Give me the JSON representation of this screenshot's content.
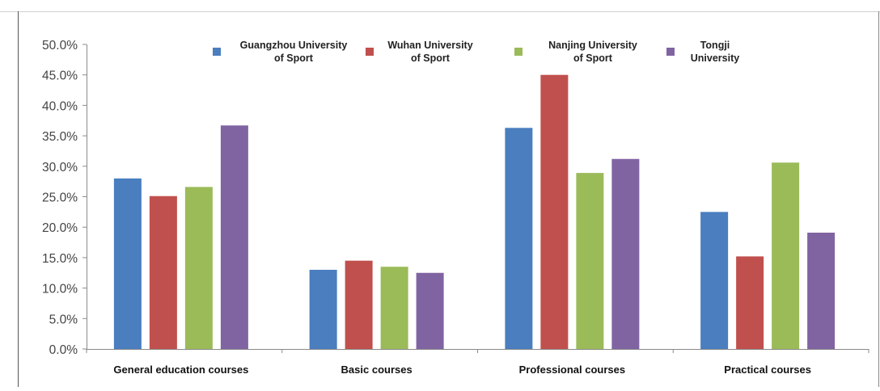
{
  "chart_data": {
    "type": "bar",
    "title": "",
    "xlabel": "",
    "ylabel": "",
    "categories": [
      "General education courses",
      "Basic courses",
      "Professional courses",
      "Practical courses"
    ],
    "series": [
      {
        "name_lines": [
          "Guangzhou University",
          "of Sport"
        ],
        "color": "#4a7ebf",
        "values": [
          28.0,
          13.0,
          36.3,
          22.5
        ]
      },
      {
        "name_lines": [
          "Wuhan University",
          "of Sport"
        ],
        "color": "#c0504d",
        "values": [
          25.1,
          14.5,
          45.0,
          15.2
        ]
      },
      {
        "name_lines": [
          "Nanjing University",
          "of Sport"
        ],
        "color": "#9bbb59",
        "values": [
          26.6,
          13.5,
          28.9,
          30.6
        ]
      },
      {
        "name_lines": [
          "Tongji",
          "University"
        ],
        "color": "#8064a2",
        "values": [
          36.7,
          12.5,
          31.2,
          19.1
        ]
      }
    ],
    "ylim": [
      0,
      50
    ],
    "y_ticks": [
      "0.0%",
      "5.0%",
      "10.0%",
      "15.0%",
      "20.0%",
      "25.0%",
      "30.0%",
      "35.0%",
      "40.0%",
      "45.0%",
      "50.0%"
    ],
    "grid": false,
    "legend_position": "top"
  }
}
